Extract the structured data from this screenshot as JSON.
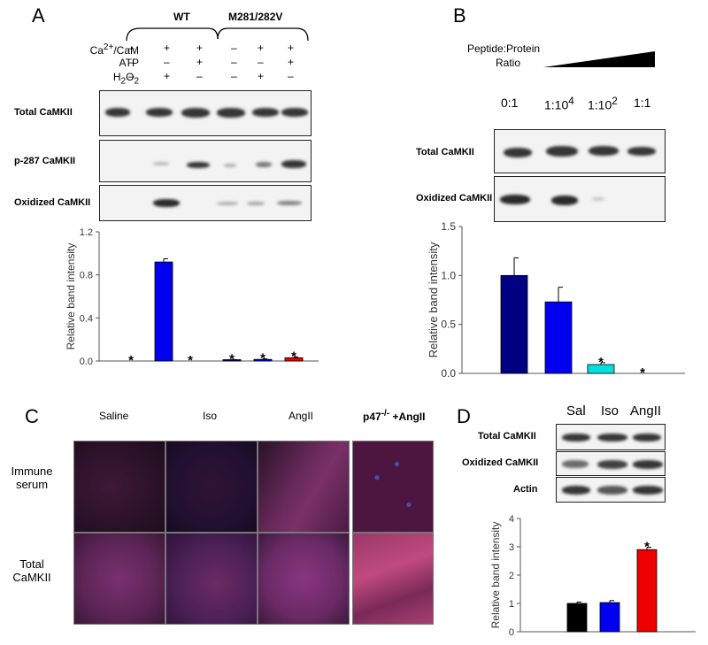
{
  "panels": {
    "a": "A",
    "b": "B",
    "c": "C",
    "d": "D"
  },
  "panel_a": {
    "groups": [
      "WT",
      "M281/282V"
    ],
    "rows": [
      {
        "label_html": "Ca<sup>2+</sup>/CaM",
        "values": [
          "–",
          "+",
          "+",
          "–",
          "+",
          "+"
        ]
      },
      {
        "label_html": "ATP",
        "values": [
          "–",
          "–",
          "+",
          "–",
          "–",
          "+"
        ]
      },
      {
        "label_html": "H<sub>2</sub>O<sub>2</sub>",
        "values": [
          "–",
          "+",
          "–",
          "–",
          "+",
          "–"
        ]
      }
    ],
    "blots": [
      "Total CaMKII",
      "p-287 CaMKII",
      "Oxidized CaMKII"
    ]
  },
  "panel_b": {
    "title_line1": "Peptide:Protein",
    "title_line2": "Ratio",
    "ratios_html": [
      "0:1",
      "1:10<sup>4</sup>",
      "1:10<sup>2</sup>",
      "1:1"
    ],
    "blots": [
      "Total CaMKII",
      "Oxidized CaMKII"
    ]
  },
  "panel_c": {
    "columns_html": [
      "Saline",
      "Iso",
      "AngII",
      "p47<sup>-/-</sup> +AngII"
    ],
    "rows_html": [
      "Immune<br>serum",
      "Total<br>CaMKII"
    ]
  },
  "panel_d": {
    "columns": [
      "Sal",
      "Iso",
      "AngII"
    ],
    "blots": [
      "Total CaMKII",
      "Oxidized CaMKII",
      "Actin"
    ]
  },
  "chart_data": [
    {
      "type": "bar",
      "panel": "A",
      "categories": [
        "",
        "",
        "",
        "",
        "",
        ""
      ],
      "values": [
        0.0,
        0.92,
        0.0,
        0.01,
        0.015,
        0.03
      ],
      "errors": [
        0,
        0.03,
        0,
        0.003,
        0.005,
        0.008
      ],
      "colors": [
        "#0000ee",
        "#0000ee",
        "#0000ee",
        "#000080",
        "#0000ee",
        "#ee0000"
      ],
      "annotations": [
        "*",
        "",
        "*",
        "*",
        "*",
        "*"
      ],
      "ylabel": "Relative band intensity",
      "ylim": [
        0,
        1.2
      ],
      "yticks": [
        "0.0",
        "0.4",
        "0.8",
        "1.2"
      ]
    },
    {
      "type": "bar",
      "panel": "B",
      "categories": [
        "",
        "",
        "",
        ""
      ],
      "values": [
        1.0,
        0.73,
        0.09,
        0.0
      ],
      "errors": [
        0.18,
        0.15,
        0.02,
        0
      ],
      "colors": [
        "#000080",
        "#0000ee",
        "#00e0e0",
        "#00e0e0"
      ],
      "annotations": [
        "",
        "",
        "*",
        "*"
      ],
      "ylabel": "Relative band intensity",
      "ylim": [
        0,
        1.5
      ],
      "yticks": [
        "0.0",
        "0.5",
        "1.0",
        "1.5"
      ]
    },
    {
      "type": "bar",
      "panel": "D",
      "categories": [
        "",
        "",
        ""
      ],
      "values": [
        1.0,
        1.03,
        2.9
      ],
      "errors": [
        0.05,
        0.07,
        0.08
      ],
      "colors": [
        "#000000",
        "#0000ee",
        "#ee0000"
      ],
      "annotations": [
        "",
        "",
        "*"
      ],
      "ylabel": "Relative band intensity",
      "ylim": [
        0,
        4
      ],
      "yticks": [
        "0",
        "1",
        "2",
        "3",
        "4"
      ]
    }
  ]
}
